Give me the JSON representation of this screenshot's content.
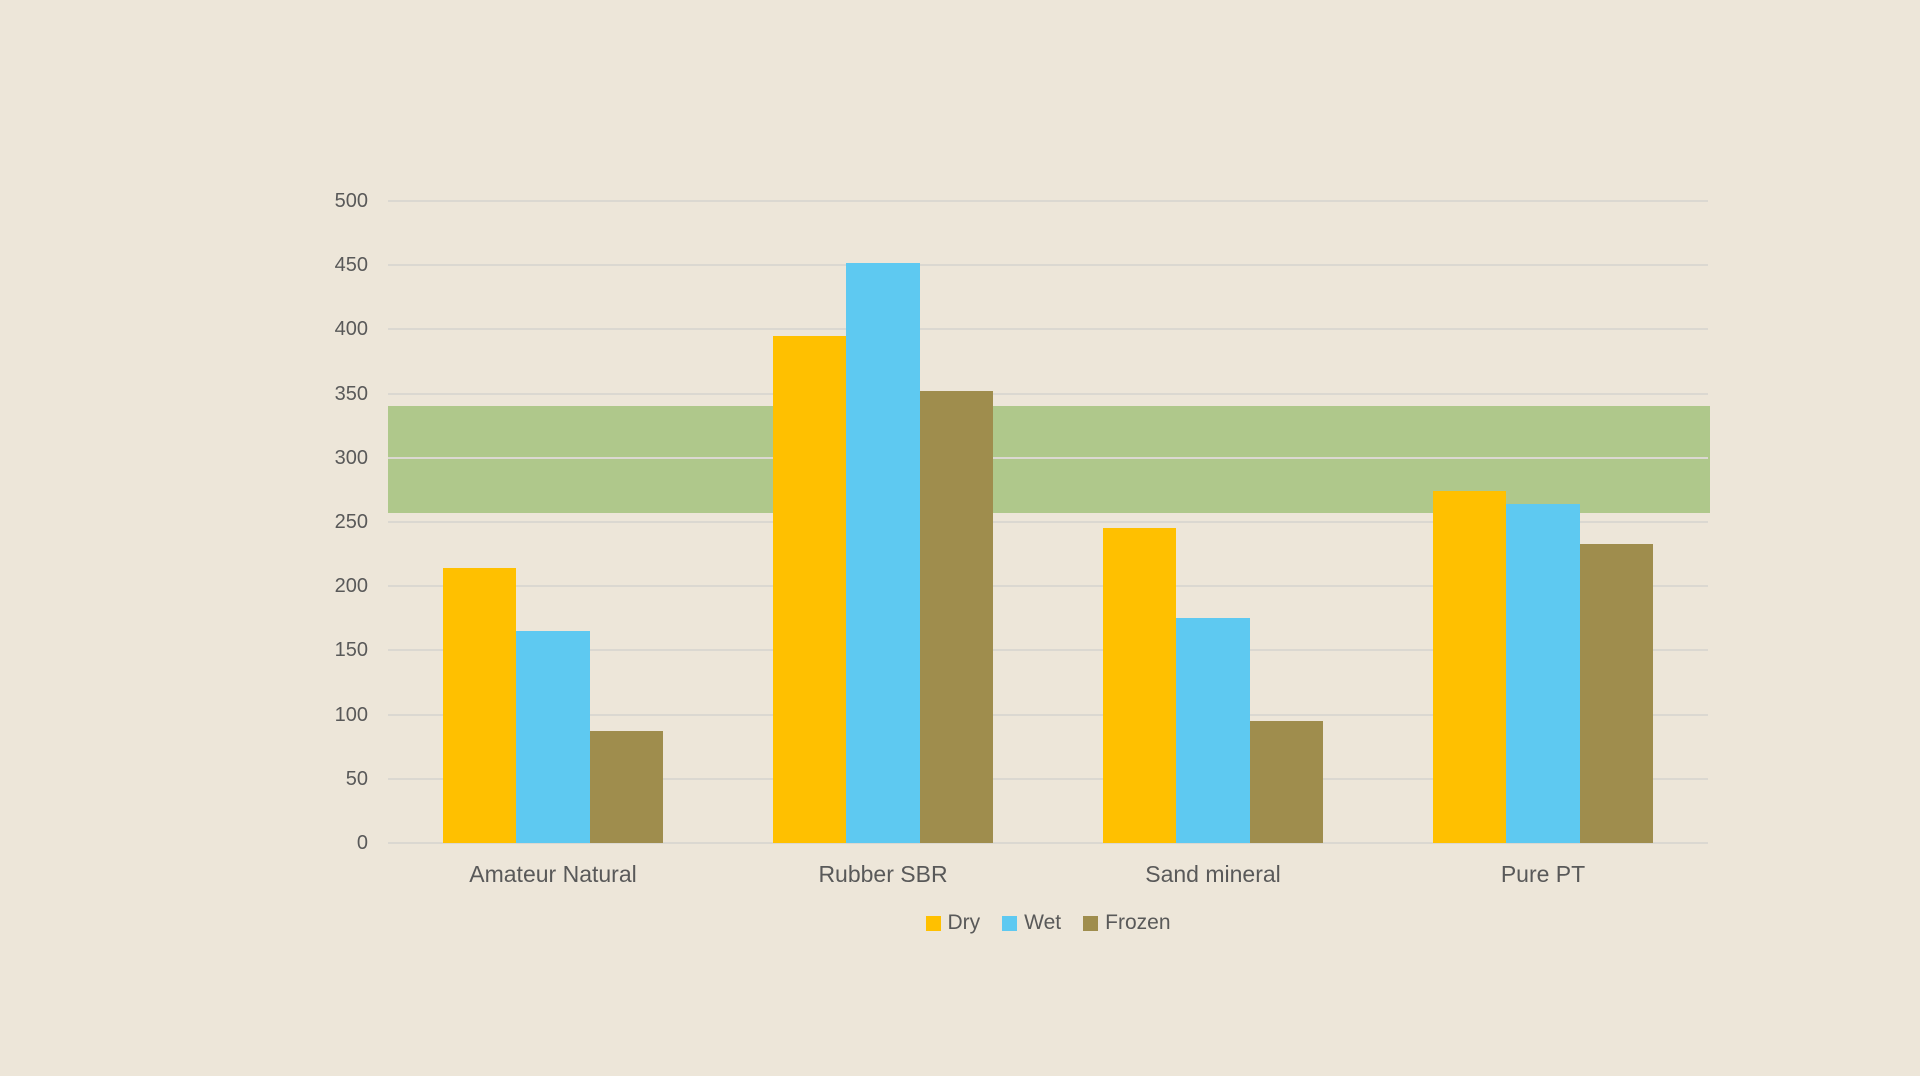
{
  "chart_data": {
    "type": "bar",
    "title": "",
    "categories": [
      "Amateur Natural",
      "Rubber SBR",
      "Sand mineral",
      "Pure PT"
    ],
    "series": [
      {
        "name": "Dry",
        "color": "#FFC000",
        "values": [
          214,
          395,
          245,
          274
        ]
      },
      {
        "name": "Wet",
        "color": "#5EC9F1",
        "values": [
          165,
          452,
          175,
          264
        ]
      },
      {
        "name": "Frozen",
        "color": "#9F8D4D",
        "values": [
          87,
          352,
          95,
          233
        ]
      }
    ],
    "y_axis": {
      "min": 0,
      "max": 500,
      "step": 50,
      "tick_labels": [
        "0",
        "50",
        "100",
        "150",
        "200",
        "250",
        "300",
        "350",
        "400",
        "450",
        "500"
      ]
    },
    "x_axis": {
      "label": "",
      "tick_labels": [
        "Amateur Natural",
        "Rubber SBR",
        "Sand mineral",
        "Pure PT"
      ]
    },
    "reference_band": {
      "from": 257,
      "to": 340,
      "color": "#AFC88B"
    },
    "legend": {
      "position": "bottom",
      "items": [
        "Dry",
        "Wet",
        "Frozen"
      ]
    },
    "grid": true,
    "bar_gap_within_cluster": 0,
    "colors": {
      "background": "#EDE6D9",
      "gridline": "#DBD8D1",
      "text": "#595959",
      "bottom_strip": "#FFFFFF"
    }
  }
}
